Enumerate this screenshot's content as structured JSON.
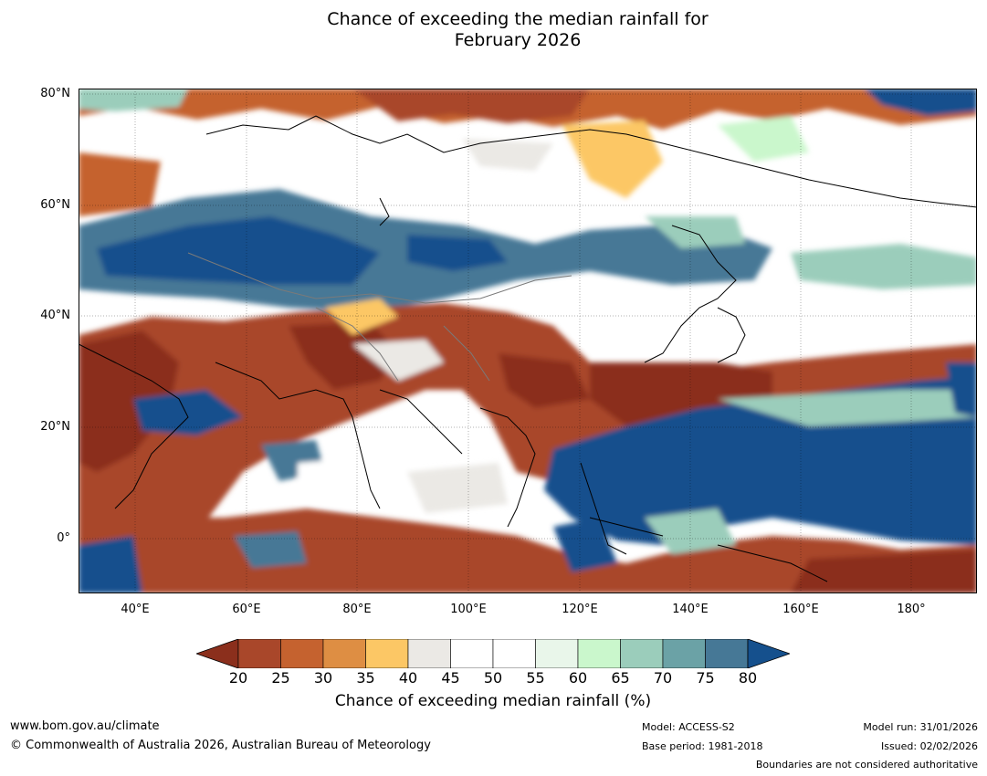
{
  "title": {
    "line1": "Chance of exceeding the median rainfall for",
    "line2": "February 2026"
  },
  "axes": {
    "lat_labels": [
      "80°N",
      "60°N",
      "40°N",
      "20°N",
      "0°"
    ],
    "lon_labels": [
      "40°E",
      "60°E",
      "80°E",
      "100°E",
      "120°E",
      "140°E",
      "160°E",
      "180°"
    ]
  },
  "legend": {
    "title": "Chance of exceeding median rainfall (%)",
    "ticks": [
      "20",
      "25",
      "30",
      "35",
      "40",
      "45",
      "50",
      "55",
      "60",
      "65",
      "70",
      "75",
      "80"
    ],
    "colors": [
      "#8b2f1c",
      "#a9472a",
      "#c5622f",
      "#de8e43",
      "#fcc765",
      "#ebe9e5",
      "#ffffff",
      "#ffffff",
      "#e9f6ea",
      "#caf7cc",
      "#9bcdbb",
      "#6ba2a6",
      "#467896",
      "#15508d"
    ]
  },
  "footer": {
    "website": "www.bom.gov.au/climate",
    "copyright": "© Commonwealth of Australia 2026, Australian Bureau of Meteorology",
    "model": "Model: ACCESS-S2",
    "base_period": "Base period: 1981-2018",
    "model_run": "Model run: 31/01/2026",
    "issued": "Issued: 02/02/2026",
    "disclaimer": "Boundaries are not considered authoritative"
  }
}
